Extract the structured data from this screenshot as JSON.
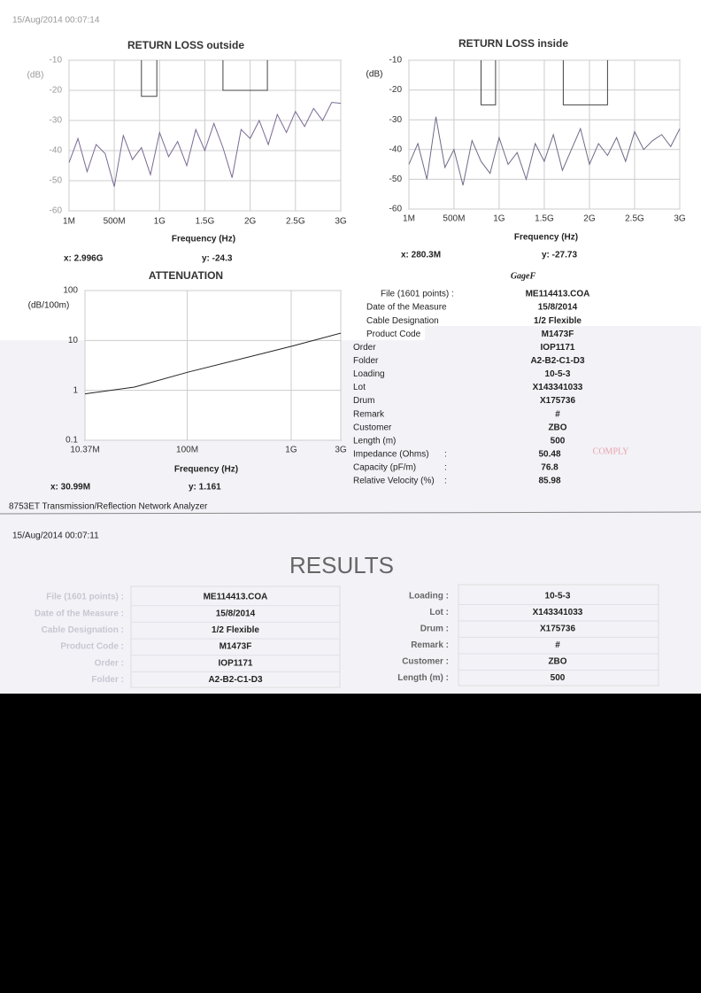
{
  "header": {
    "timestamp": "15/Aug/2014 00:07:14"
  },
  "chart_data": [
    {
      "type": "line",
      "title": "RETURN LOSS outside",
      "xlabel": "Frequency (Hz)",
      "ylabel": "(dB)",
      "xlim": [
        1000000,
        3000000000
      ],
      "ylim": [
        -60,
        -10
      ],
      "xticks": [
        {
          "value": 1000000,
          "label": "1M"
        },
        {
          "value": 500000000,
          "label": "500M"
        },
        {
          "value": 1000000000,
          "label": "1G"
        },
        {
          "value": 1500000000,
          "label": "1.5G"
        },
        {
          "value": 2000000000,
          "label": "2G"
        },
        {
          "value": 2500000000,
          "label": "2.5G"
        },
        {
          "value": 3000000000,
          "label": "3G"
        }
      ],
      "yticks": [
        -60,
        -50,
        -40,
        -30,
        -20,
        -10
      ],
      "grid": true,
      "cursor": [
        "x: 2.996G",
        "y: -24.3"
      ],
      "series": [
        {
          "color": "#7a6a94",
          "x": [
            1000000,
            100000000,
            200000000,
            300000000,
            400000000,
            500000000,
            600000000,
            700000000,
            800000000,
            900000000,
            1000000000,
            1100000000,
            1200000000,
            1300000000,
            1400000000,
            1500000000,
            1600000000,
            1700000000,
            1800000000,
            1900000000,
            2000000000,
            2100000000,
            2200000000,
            2300000000,
            2400000000,
            2500000000,
            2600000000,
            2700000000,
            2800000000,
            2900000000,
            3000000000
          ],
          "values": [
            -44,
            -36,
            -47,
            -38,
            -41,
            -52,
            -35,
            -43,
            -39,
            -48,
            -34,
            -42,
            -37,
            -45,
            -33,
            -40,
            -31,
            -39,
            -49,
            -33,
            -36,
            -30,
            -38,
            -28,
            -34,
            -27,
            -32,
            -26,
            -30,
            -24,
            -24.3
          ]
        },
        {
          "color": "#444444",
          "x": [
            800000000,
            800000000,
            970000000,
            970000000,
            null,
            1700000000,
            1700000000,
            2190000000,
            2190000000
          ],
          "values": [
            -10,
            -22,
            -22,
            -10,
            null,
            -10,
            -20,
            -20,
            -10
          ]
        }
      ]
    },
    {
      "type": "line",
      "title": "RETURN LOSS inside",
      "xlabel": "Frequency (Hz)",
      "ylabel": "(dB)",
      "xlim": [
        1000000,
        3000000000
      ],
      "ylim": [
        -60,
        -10
      ],
      "xticks": [
        {
          "value": 1000000,
          "label": "1M"
        },
        {
          "value": 500000000,
          "label": "500M"
        },
        {
          "value": 1000000000,
          "label": "1G"
        },
        {
          "value": 1500000000,
          "label": "1.5G"
        },
        {
          "value": 2000000000,
          "label": "2G"
        },
        {
          "value": 2500000000,
          "label": "2.5G"
        },
        {
          "value": 3000000000,
          "label": "3G"
        }
      ],
      "yticks": [
        -60,
        -50,
        -40,
        -30,
        -20,
        -10
      ],
      "grid": true,
      "cursor": [
        "x: 280.3M",
        "y: -27.73"
      ],
      "series": [
        {
          "color": "#6f6a88",
          "x": [
            1000000,
            100000000,
            200000000,
            300000000,
            400000000,
            500000000,
            600000000,
            700000000,
            800000000,
            900000000,
            1000000000,
            1100000000,
            1200000000,
            1300000000,
            1400000000,
            1500000000,
            1600000000,
            1700000000,
            1800000000,
            1900000000,
            2000000000,
            2100000000,
            2200000000,
            2300000000,
            2400000000,
            2500000000,
            2600000000,
            2700000000,
            2800000000,
            2900000000,
            3000000000
          ],
          "values": [
            -45,
            -38,
            -50,
            -29,
            -46,
            -40,
            -52,
            -37,
            -44,
            -48,
            -36,
            -45,
            -41,
            -50,
            -38,
            -44,
            -35,
            -47,
            -40,
            -33,
            -45,
            -38,
            -42,
            -36,
            -44,
            -34,
            -40,
            -37,
            -35,
            -39,
            -33
          ]
        },
        {
          "color": "#444444",
          "x": [
            800000000,
            800000000,
            960000000,
            960000000,
            null,
            1710000000,
            1710000000,
            2200000000,
            2200000000
          ],
          "values": [
            -10,
            -25,
            -25,
            -10,
            null,
            -10,
            -25,
            -25,
            -10
          ]
        }
      ]
    },
    {
      "type": "line",
      "title": "ATTENUATION",
      "xlabel": "Frequency (Hz)",
      "ylabel": "(dB/100m)",
      "xscale": "log",
      "yscale": "log",
      "xlim": [
        10370000,
        3000000000
      ],
      "ylim": [
        0.1,
        100
      ],
      "xticks": [
        {
          "value": 10370000,
          "label": "10.37M"
        },
        {
          "value": 100000000,
          "label": "100M"
        },
        {
          "value": 1000000000,
          "label": "1G"
        },
        {
          "value": 3000000000,
          "label": "3G"
        }
      ],
      "yticks": [
        0.1,
        1,
        10,
        100
      ],
      "grid": true,
      "cursor": [
        "x: 30.99M",
        "y: 1.161"
      ],
      "series": [
        {
          "color": "#222222",
          "x": [
            10370000,
            30990000,
            100000000,
            1000000000,
            3000000000
          ],
          "values": [
            0.85,
            1.161,
            2.3,
            7.6,
            14
          ]
        }
      ]
    }
  ],
  "info": {
    "brand": "GageF",
    "stamp": "COMPLY",
    "rows": [
      [
        "File (1601 points) :",
        "ME114413.COA"
      ],
      [
        "Date of the Measure",
        "15/8/2014"
      ],
      [
        "Cable Designation",
        "1/2 Flexible"
      ],
      [
        "Product Code",
        "M1473F"
      ],
      [
        "Order",
        "IOP1171"
      ],
      [
        "Folder",
        "A2-B2-C1-D3"
      ],
      [
        "Loading",
        "10-5-3"
      ],
      [
        "Lot",
        "X143341033"
      ],
      [
        "Drum",
        "X175736"
      ],
      [
        "Remark",
        "#"
      ],
      [
        "Customer",
        "ZBO"
      ],
      [
        "Length (m)",
        "500"
      ],
      [
        "Impedance (Ohms)",
        ":",
        "50.48"
      ],
      [
        "Capacity (pF/m)",
        ":",
        "76.8"
      ],
      [
        "Relative Velocity (%)",
        ":",
        "85.98"
      ]
    ]
  },
  "footer": {
    "instrument": "8753ET Transmission/Reflection Network Analyzer"
  },
  "results": {
    "timestamp": "15/Aug/2014 00:07:11",
    "title": "RESULTS",
    "left": [
      [
        "File (1601 points) :",
        "ME114413.COA"
      ],
      [
        "Date of the Measure :",
        "15/8/2014"
      ],
      [
        "Cable Designation :",
        "1/2 Flexible"
      ],
      [
        "Product Code :",
        "M1473F"
      ],
      [
        "Order :",
        "IOP1171"
      ],
      [
        "Folder :",
        "A2-B2-C1-D3"
      ]
    ],
    "right": [
      [
        "Loading :",
        "10-5-3"
      ],
      [
        "Lot :",
        "X143341033"
      ],
      [
        "Drum :",
        "X175736"
      ],
      [
        "Remark :",
        "#"
      ],
      [
        "Customer :",
        "ZBO"
      ],
      [
        "Length (m) :",
        "500"
      ]
    ]
  }
}
